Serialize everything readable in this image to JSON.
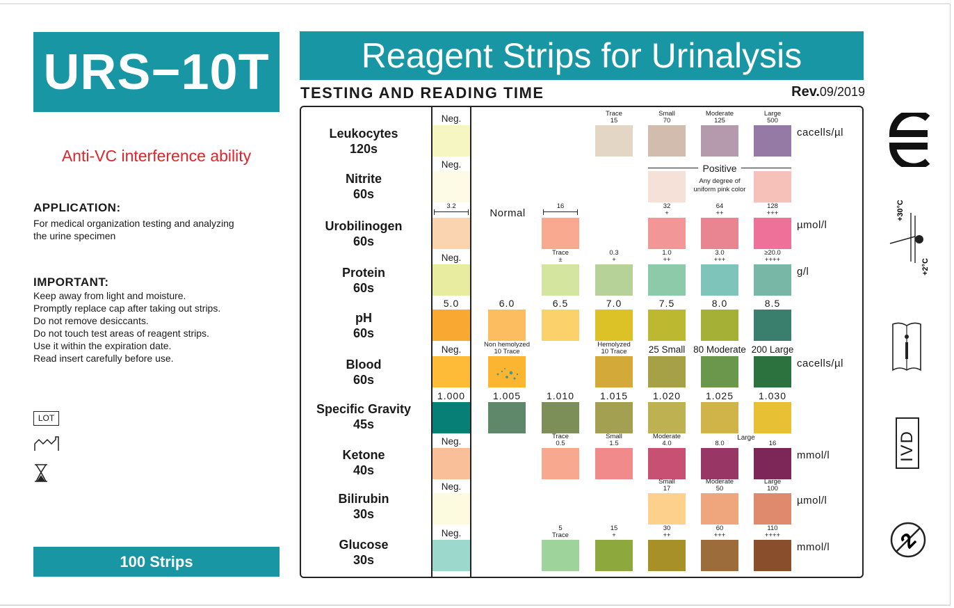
{
  "product": {
    "model": "URS−10T",
    "tagline": "Anti-VC interference ability",
    "strips": "100 Strips"
  },
  "header": {
    "title": "Reagent Strips for Urinalysis",
    "subtitle": "TESTING AND READING TIME",
    "rev_prefix": "Rev.",
    "rev_date": "09/2019"
  },
  "application": {
    "title": "APPLICATION:",
    "lines": [
      "For medical organization testing and analyzing",
      "the urine specimen"
    ]
  },
  "important": {
    "title": "IMPORTANT:",
    "lines": [
      "Keep away from light and moisture.",
      "Promptly replace cap after taking out strips.",
      "Do not remove desiccants.",
      "Do not touch test areas of reagent strips.",
      "Use it within the expiration date.",
      "Read insert carefully before use."
    ]
  },
  "symbols": {
    "lot": "LOT",
    "mfg_icon": "manufacture-date-icon",
    "exp_icon": "hourglass-expiry-icon",
    "ce_icon": "ce-mark-icon",
    "temp_icon": "temperature-limit-icon",
    "temp_high": "+30°C",
    "temp_low": "+2°C",
    "book_icon": "consult-instructions-icon",
    "ivd": "IVD",
    "noreuse_icon": "do-not-reuse-icon",
    "noreuse_digit": "2"
  },
  "chart": {
    "normal_label": "Normal",
    "positive_label": "Positive",
    "positive_note": [
      "Any degree of",
      "uniform pink color"
    ],
    "rows": [
      {
        "name": "Leukocytes",
        "time": "120s",
        "unit": "cacells/µl"
      },
      {
        "name": "Nitrite",
        "time": "60s",
        "unit": ""
      },
      {
        "name": "Urobilinogen",
        "time": "60s",
        "unit": "µmol/l"
      },
      {
        "name": "Protein",
        "time": "60s",
        "unit": "g/l"
      },
      {
        "name": "pH",
        "time": "60s",
        "unit": ""
      },
      {
        "name": "Blood",
        "time": "60s",
        "unit": "cacells/µl"
      },
      {
        "name": "Specific Gravity",
        "time": "45s",
        "unit": ""
      },
      {
        "name": "Ketone",
        "time": "40s",
        "unit": "mmol/l"
      },
      {
        "name": "Bilirubin",
        "time": "30s",
        "unit": "µmol/l"
      },
      {
        "name": "Glucose",
        "time": "30s",
        "unit": "mmol/l"
      }
    ],
    "pads": [
      [
        {
          "c": "#f6f6c3",
          "l1": "Neg.",
          "big": true
        },
        null,
        null,
        {
          "c": "#e3d6c4",
          "l1": "Trace",
          "l2": "15"
        },
        {
          "c": "#d2bcae",
          "l1": "Small",
          "l2": "70"
        },
        {
          "c": "#b59aae",
          "l1": "Moderate",
          "l2": "125"
        },
        {
          "c": "#957aa5",
          "l1": "Large",
          "l2": "500"
        }
      ],
      [
        {
          "c": "#fdfbe5",
          "l1": "Neg.",
          "big": true
        },
        null,
        null,
        null,
        {
          "c": "#f6e1d9"
        },
        null,
        {
          "c": "#f6c1b9"
        }
      ],
      [
        {
          "c": "#fad3b1",
          "l1": "3.2",
          "ruler": true
        },
        null,
        {
          "c": "#f8a98f",
          "l1": "16",
          "ruler": true
        },
        null,
        {
          "c": "#f29698",
          "l1": "32",
          "l2": "+"
        },
        {
          "c": "#e98590",
          "l1": "64",
          "l2": "++"
        },
        {
          "c": "#ed7198",
          "l1": "128",
          "l2": "+++"
        }
      ],
      [
        {
          "c": "#e8eca1",
          "l1": "Neg.",
          "big": true
        },
        null,
        {
          "c": "#d4e59f",
          "l1": "Trace",
          "l2": "±"
        },
        {
          "c": "#b6d299",
          "l1": "0.3",
          "l2": "+"
        },
        {
          "c": "#8dcaa9",
          "l1": "1.0",
          "l2": "++"
        },
        {
          "c": "#7ec4bb",
          "l1": "3.0",
          "l2": "+++"
        },
        {
          "c": "#78b7a5",
          "l1": "≥20.0",
          "l2": "++++"
        }
      ],
      [
        {
          "c": "#f9a832",
          "l1": "5.0",
          "num": true
        },
        {
          "c": "#fcbc60",
          "l1": "6.0",
          "num": true
        },
        {
          "c": "#fbd16b",
          "l1": "6.5",
          "num": true
        },
        {
          "c": "#ddc227",
          "l1": "7.0",
          "num": true
        },
        {
          "c": "#bcb830",
          "l1": "7.5",
          "num": true
        },
        {
          "c": "#a5b136",
          "l1": "8.0",
          "num": true
        },
        {
          "c": "#3a7f6e",
          "l1": "8.5",
          "num": true
        }
      ],
      [
        {
          "c": "#fdbb37",
          "l1": "Neg.",
          "big": true
        },
        {
          "c": "#fbb531",
          "l1": "Non hemolyzed",
          "l2": "10 Trace",
          "dots": true
        },
        null,
        {
          "c": "#d3aa3a",
          "l1": "Hemolyzed",
          "l2": "10 Trace"
        },
        {
          "c": "#a6a046",
          "l1": "25 Small",
          "big": true
        },
        {
          "c": "#6a974c",
          "l1": "80 Moderate",
          "big": true
        },
        {
          "c": "#2b723f",
          "l1": "200 Large",
          "big": true
        }
      ],
      [
        {
          "c": "#087f76",
          "l1": "1.000",
          "num": true
        },
        {
          "c": "#5f8769",
          "l1": "1.005",
          "num": true
        },
        {
          "c": "#7c8f59",
          "l1": "1.010",
          "num": true
        },
        {
          "c": "#a3a052",
          "l1": "1.015",
          "num": true
        },
        {
          "c": "#bdb152",
          "l1": "1.020",
          "num": true
        },
        {
          "c": "#d1b449",
          "l1": "1.025",
          "num": true
        },
        {
          "c": "#e7c033",
          "l1": "1.030",
          "num": true
        }
      ],
      [
        {
          "c": "#f9bf98",
          "l1": "Neg.",
          "big": true
        },
        null,
        {
          "c": "#f8a88f",
          "l1": "Trace",
          "l2": "0.5"
        },
        {
          "c": "#f18a8b",
          "l1": "Small",
          "l2": "1.5"
        },
        {
          "c": "#c85173",
          "l1": "Moderate",
          "l2": "4.0"
        },
        {
          "c": "#983765",
          "l1": "",
          "l2": "8.0"
        },
        {
          "c": "#7d2758",
          "l1": "",
          "l2": "16"
        }
      ],
      [
        {
          "c": "#fdfbdf",
          "l1": "Neg.",
          "big": true
        },
        null,
        null,
        null,
        {
          "c": "#fdd08c",
          "l1": "Small",
          "l2": "17"
        },
        {
          "c": "#efa67c",
          "l1": "Moderate",
          "l2": "50"
        },
        {
          "c": "#e08a6d",
          "l1": "Large",
          "l2": "100"
        }
      ],
      [
        {
          "c": "#9cd8cc",
          "l1": "Neg.",
          "big": true
        },
        null,
        {
          "c": "#9ed49b",
          "l1": "5",
          "l2": "Trace"
        },
        {
          "c": "#8da83c",
          "l1": "15",
          "l2": "+"
        },
        {
          "c": "#a89029",
          "l1": "30",
          "l2": "++"
        },
        {
          "c": "#9c6c3b",
          "l1": "60",
          "l2": "+++"
        },
        {
          "c": "#894f2c",
          "l1": "110",
          "l2": "++++"
        }
      ]
    ],
    "ketone_large_label": "Large"
  }
}
